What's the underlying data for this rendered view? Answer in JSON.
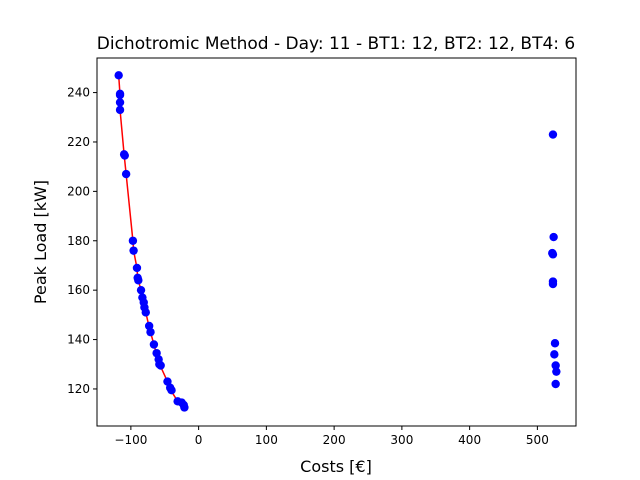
{
  "chart_data": {
    "type": "scatter",
    "title": "Dichotromic Method - Day: 11 - BT1: 12, BT2: 12, BT4: 6",
    "xlabel": "Costs [€]",
    "ylabel": "Peak Load [kW]",
    "xlim": [
      -150,
      557
    ],
    "ylim": [
      105,
      254
    ],
    "xticks": [
      -100,
      0,
      100,
      200,
      300,
      400,
      500
    ],
    "xtick_labels": [
      "−100",
      "0",
      "100",
      "200",
      "300",
      "400",
      "500"
    ],
    "yticks": [
      120,
      140,
      160,
      180,
      200,
      220,
      240
    ],
    "ytick_labels": [
      "120",
      "140",
      "160",
      "180",
      "200",
      "220",
      "240"
    ],
    "grid": false,
    "colors": {
      "points": "#0000ff",
      "front_line": "#ff0000",
      "axes": "#000000"
    },
    "series": [
      {
        "role": "pareto-front",
        "style": "line",
        "color": "#ff0000",
        "points": [
          [
            -118,
            247
          ],
          [
            -116,
            239
          ],
          [
            -116,
            236
          ],
          [
            -116,
            233
          ],
          [
            -110,
            215
          ],
          [
            -107,
            207
          ],
          [
            -97,
            180
          ],
          [
            -96,
            176
          ],
          [
            -91,
            169
          ],
          [
            -90,
            165
          ],
          [
            -89,
            164
          ],
          [
            -85,
            160
          ],
          [
            -83,
            157
          ],
          [
            -81,
            155
          ],
          [
            -80,
            153
          ],
          [
            -78,
            151
          ],
          [
            -73,
            145
          ],
          [
            -71,
            143
          ],
          [
            -66,
            138
          ],
          [
            -62,
            134
          ],
          [
            -59,
            132
          ],
          [
            -58,
            130
          ],
          [
            -56,
            129
          ],
          [
            -46,
            123
          ],
          [
            -42,
            121
          ],
          [
            -40,
            119
          ],
          [
            -31,
            115
          ],
          [
            -25,
            114.5
          ],
          [
            -22,
            113
          ],
          [
            -21,
            112.5
          ]
        ]
      },
      {
        "role": "all-solutions",
        "style": "scatter",
        "color": "#0000ff",
        "points": [
          [
            -118,
            247
          ],
          [
            -116,
            239.5
          ],
          [
            -116,
            239
          ],
          [
            -116,
            236
          ],
          [
            -116,
            233
          ],
          [
            -110,
            215
          ],
          [
            -109,
            214.5
          ],
          [
            -107,
            207
          ],
          [
            -97,
            180
          ],
          [
            -96,
            176
          ],
          [
            -91,
            169
          ],
          [
            -90,
            165
          ],
          [
            -89,
            164
          ],
          [
            -85,
            160
          ],
          [
            -83,
            157
          ],
          [
            -81,
            155
          ],
          [
            -80,
            153
          ],
          [
            -78,
            151
          ],
          [
            -73,
            145.5
          ],
          [
            -71,
            143
          ],
          [
            -66,
            138
          ],
          [
            -62,
            134.5
          ],
          [
            -59,
            132
          ],
          [
            -58,
            130
          ],
          [
            -56,
            129.5
          ],
          [
            -46,
            123
          ],
          [
            -42,
            120.5
          ],
          [
            -40,
            119.5
          ],
          [
            -31,
            115
          ],
          [
            -25,
            114.5
          ],
          [
            -22,
            113.5
          ],
          [
            -21,
            112.5
          ],
          [
            523,
            223
          ],
          [
            524,
            181.5
          ],
          [
            522,
            175
          ],
          [
            523,
            174.5
          ],
          [
            523,
            163.5
          ],
          [
            523,
            162.5
          ],
          [
            526,
            138.5
          ],
          [
            525,
            134
          ],
          [
            527,
            129.5
          ],
          [
            528,
            127
          ],
          [
            527,
            122
          ]
        ]
      }
    ]
  }
}
